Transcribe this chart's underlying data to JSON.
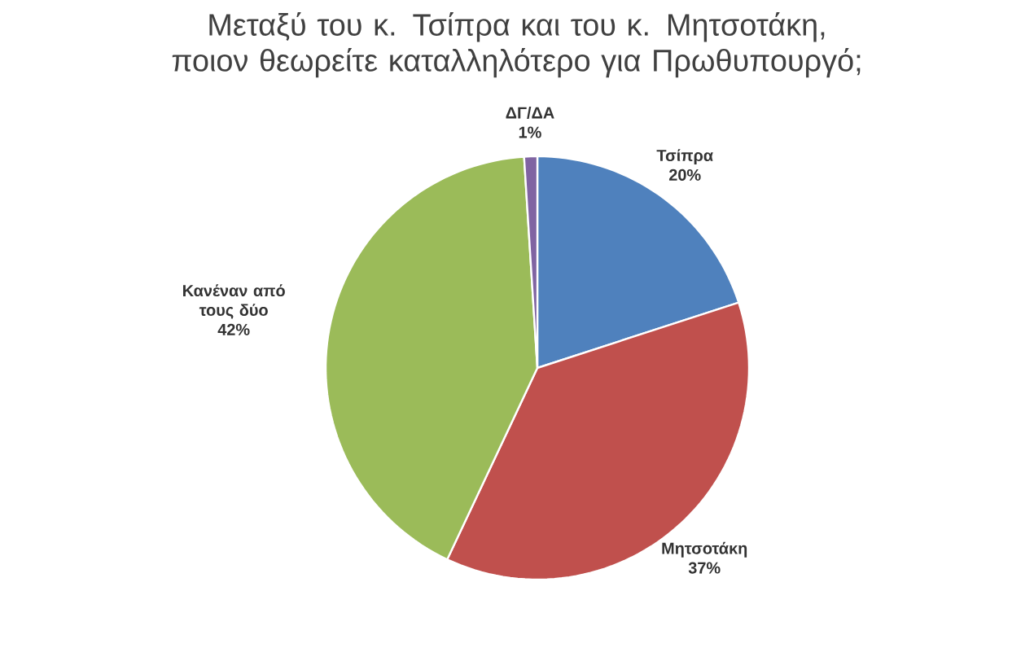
{
  "chart_data": {
    "type": "pie",
    "title": "Μεταξύ του κ. Τσίπρα και του κ. Μητσοτάκη, ποιον θεωρείτε καταλληλότερο για Πρωθυπουργό;",
    "categories": [
      "Τσίπρα",
      "Μητσοτάκη",
      "Κανέναν από τους δύο",
      "ΔΓ/ΔΑ"
    ],
    "values": [
      20,
      37,
      42,
      1
    ],
    "value_labels": [
      "20%",
      "37%",
      "42%",
      "1%"
    ],
    "colors": [
      "#4f81bd",
      "#c0504d",
      "#9bbb59",
      "#8064a2"
    ]
  }
}
